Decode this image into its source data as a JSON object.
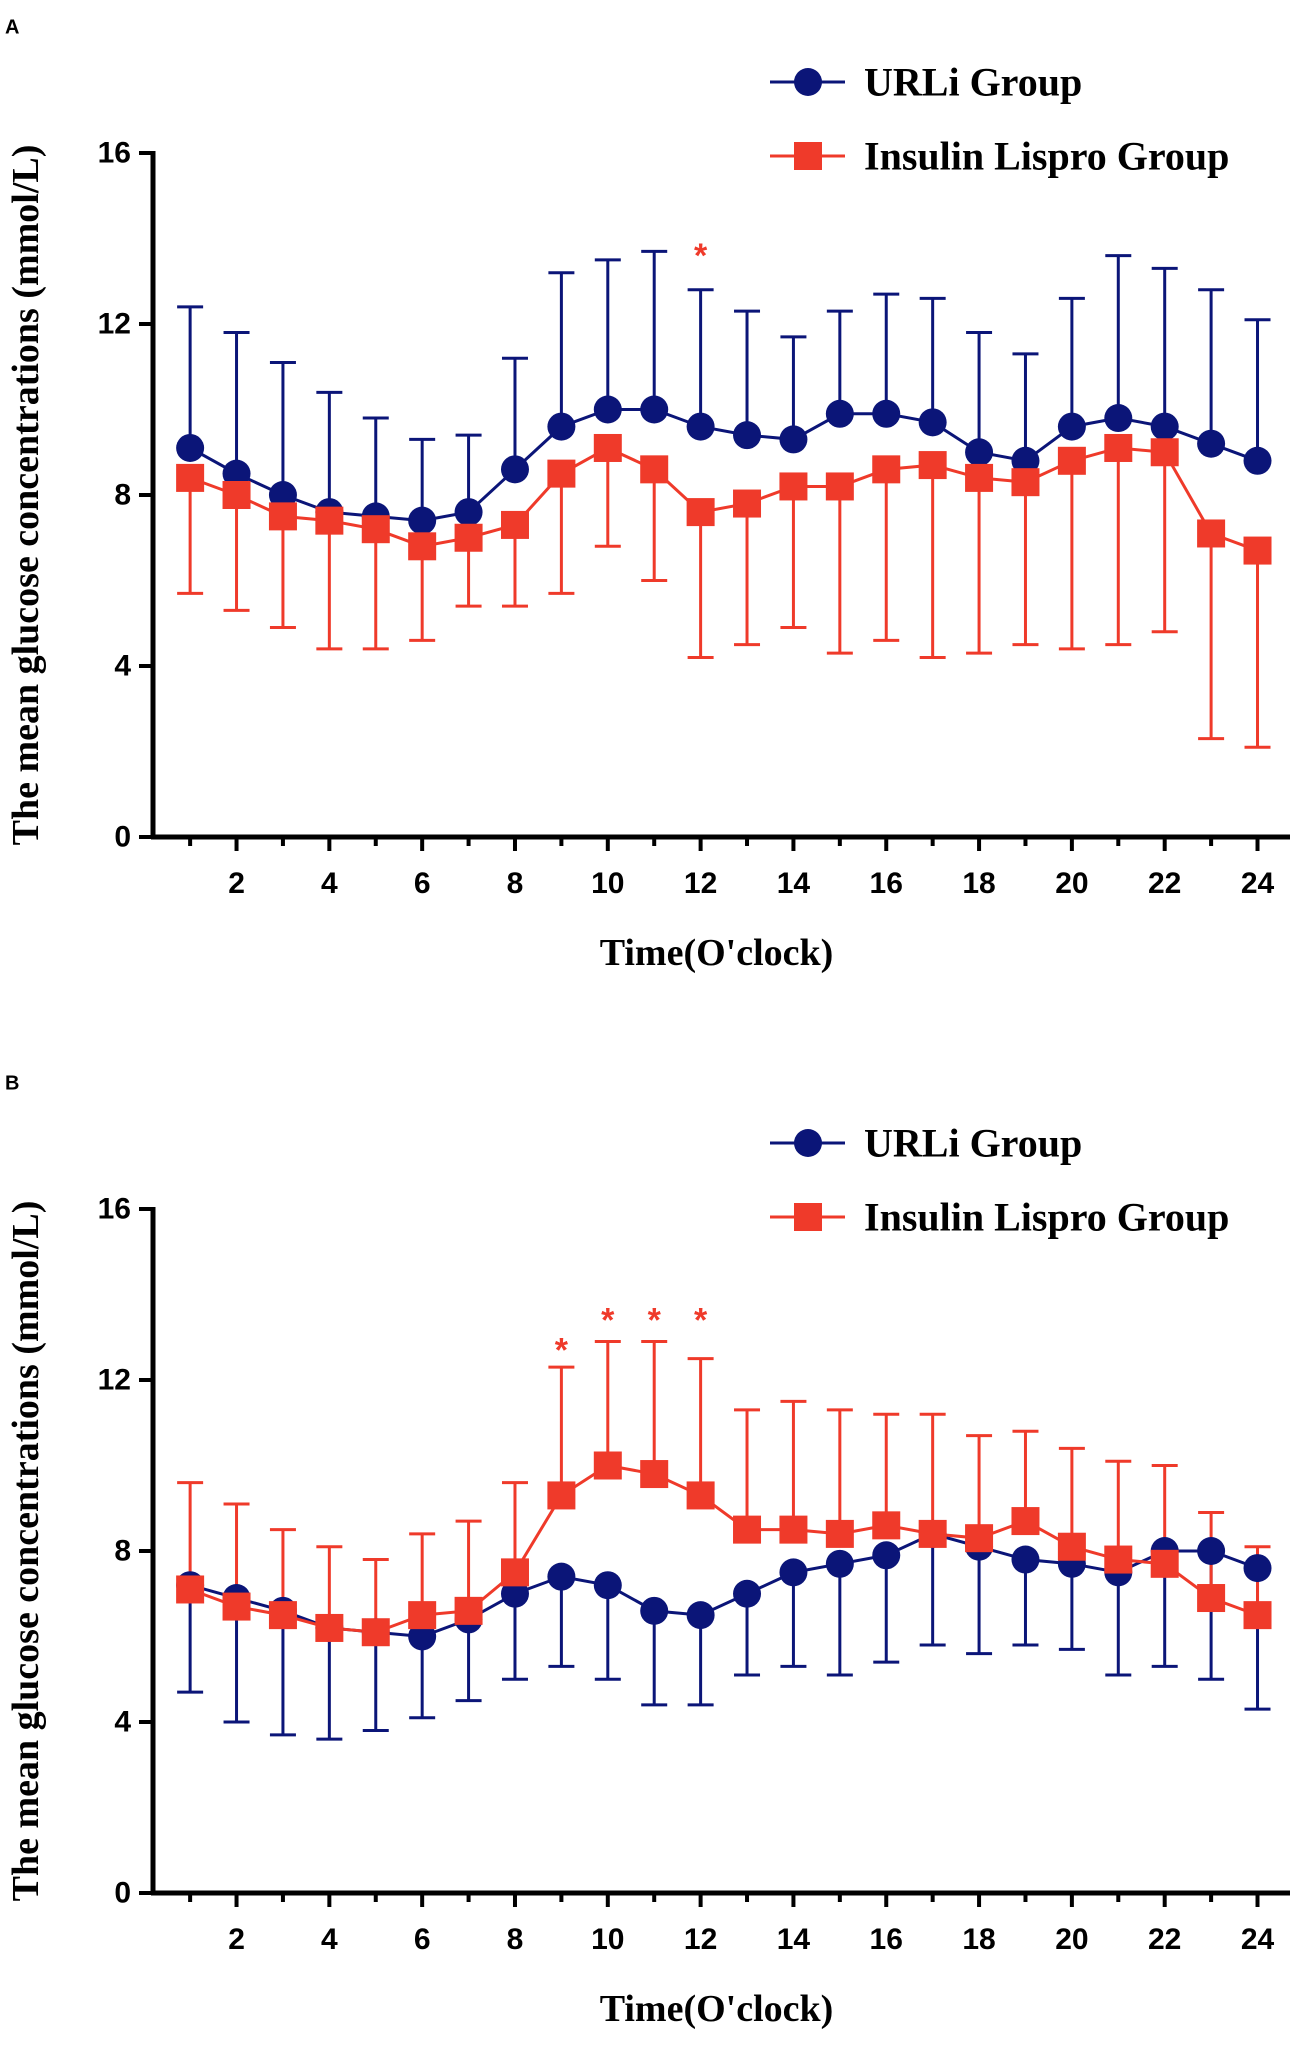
{
  "colors": {
    "urli": "#0b1578",
    "lispro": "#ef3a2a",
    "axis": "#000000"
  },
  "chart_data": [
    {
      "panel": "A",
      "type": "line",
      "xlabel": "Time(O'clock)",
      "ylabel": "The mean glucose concentrations (mmol/L)",
      "xlim": [
        0.2,
        24.7
      ],
      "ylim": [
        0,
        16
      ],
      "xticks": [
        2,
        4,
        6,
        8,
        10,
        12,
        14,
        16,
        18,
        20,
        22,
        24
      ],
      "yticks": [
        0,
        4,
        8,
        12,
        16
      ],
      "x": [
        1,
        2,
        3,
        4,
        5,
        6,
        7,
        8,
        9,
        10,
        11,
        12,
        13,
        14,
        15,
        16,
        17,
        18,
        19,
        20,
        21,
        22,
        23,
        24
      ],
      "legend_position": "top-right",
      "series": [
        {
          "name": "URLi Group",
          "marker": "circle",
          "color_key": "urli",
          "error_dir": "up",
          "values": [
            9.1,
            8.5,
            8.0,
            7.6,
            7.5,
            7.4,
            7.6,
            8.6,
            9.6,
            10.0,
            10.0,
            9.6,
            9.4,
            9.3,
            9.9,
            9.9,
            9.7,
            9.0,
            8.8,
            9.6,
            9.8,
            9.6,
            9.2,
            8.8
          ],
          "errors": [
            3.3,
            3.3,
            3.1,
            2.8,
            2.3,
            1.9,
            1.8,
            2.6,
            3.6,
            3.5,
            3.7,
            3.2,
            2.9,
            2.4,
            2.4,
            2.8,
            2.9,
            2.8,
            2.5,
            3.0,
            3.8,
            3.7,
            3.6,
            3.3
          ]
        },
        {
          "name": "Insulin Lispro Group",
          "marker": "square",
          "color_key": "lispro",
          "error_dir": "down",
          "values": [
            8.4,
            8.0,
            7.5,
            7.4,
            7.2,
            6.8,
            7.0,
            7.3,
            8.5,
            9.1,
            8.6,
            7.6,
            7.8,
            8.2,
            8.2,
            8.6,
            8.7,
            8.4,
            8.3,
            8.8,
            9.1,
            9.0,
            7.1,
            6.7
          ],
          "errors": [
            2.7,
            2.7,
            2.6,
            3.0,
            2.8,
            2.2,
            1.6,
            1.9,
            2.8,
            2.3,
            2.6,
            3.4,
            3.3,
            3.3,
            3.9,
            4.0,
            4.5,
            4.1,
            3.8,
            4.4,
            4.6,
            4.2,
            4.8,
            4.6
          ]
        }
      ],
      "annotations": [
        {
          "text": "*",
          "x": 12,
          "y": 13.8,
          "color_key": "lispro"
        }
      ]
    },
    {
      "panel": "B",
      "type": "line",
      "xlabel": "Time(O'clock)",
      "ylabel": "The mean glucose concentrations (mmol/L)",
      "xlim": [
        0.2,
        24.7
      ],
      "ylim": [
        0,
        16
      ],
      "xticks": [
        2,
        4,
        6,
        8,
        10,
        12,
        14,
        16,
        18,
        20,
        22,
        24
      ],
      "yticks": [
        0,
        4,
        8,
        12,
        16
      ],
      "x": [
        1,
        2,
        3,
        4,
        5,
        6,
        7,
        8,
        9,
        10,
        11,
        12,
        13,
        14,
        15,
        16,
        17,
        18,
        19,
        20,
        21,
        22,
        23,
        24
      ],
      "legend_position": "top-right",
      "series": [
        {
          "name": "URLi Group",
          "marker": "circle",
          "color_key": "urli",
          "error_dir": "down",
          "values": [
            7.2,
            6.9,
            6.6,
            6.2,
            6.1,
            6.0,
            6.4,
            7.0,
            7.4,
            7.2,
            6.6,
            6.5,
            7.0,
            7.5,
            7.7,
            7.9,
            8.4,
            8.1,
            7.8,
            7.7,
            7.5,
            8.0,
            8.0,
            7.6
          ],
          "errors": [
            2.5,
            2.9,
            2.9,
            2.6,
            2.3,
            1.9,
            1.9,
            2.0,
            2.1,
            2.2,
            2.2,
            2.1,
            1.9,
            2.2,
            2.6,
            2.5,
            2.6,
            2.5,
            2.0,
            2.0,
            2.4,
            2.7,
            3.0,
            3.3
          ]
        },
        {
          "name": "Insulin Lispro Group",
          "marker": "square",
          "color_key": "lispro",
          "error_dir": "up",
          "values": [
            7.1,
            6.7,
            6.5,
            6.2,
            6.1,
            6.5,
            6.6,
            7.5,
            9.3,
            10.0,
            9.8,
            9.3,
            8.5,
            8.5,
            8.4,
            8.6,
            8.4,
            8.3,
            8.7,
            8.1,
            7.8,
            7.7,
            6.9,
            6.5
          ],
          "errors": [
            2.5,
            2.4,
            2.0,
            1.9,
            1.7,
            1.9,
            2.1,
            2.1,
            3.0,
            2.9,
            3.1,
            3.2,
            2.8,
            3.0,
            2.9,
            2.6,
            2.8,
            2.4,
            2.1,
            2.3,
            2.3,
            2.3,
            2.0,
            1.6
          ]
        }
      ],
      "annotations": [
        {
          "text": "*",
          "x": 9,
          "y": 12.9,
          "color_key": "lispro"
        },
        {
          "text": "*",
          "x": 10,
          "y": 13.6,
          "color_key": "lispro"
        },
        {
          "text": "*",
          "x": 11,
          "y": 13.6,
          "color_key": "lispro"
        },
        {
          "text": "*",
          "x": 12,
          "y": 13.6,
          "color_key": "lispro"
        }
      ]
    }
  ]
}
